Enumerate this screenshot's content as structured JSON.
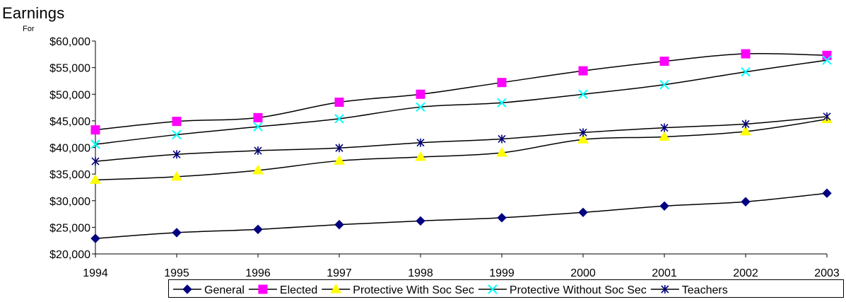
{
  "chart_data": {
    "type": "line",
    "title": "Earnings",
    "subtitle": "For",
    "categories": [
      "1994",
      "1995",
      "1996",
      "1997",
      "1998",
      "1999",
      "2000",
      "2001",
      "2002",
      "2003"
    ],
    "ylim": [
      20000,
      60000
    ],
    "yticks": [
      "$20,000",
      "$25,000",
      "$30,000",
      "$35,000",
      "$40,000",
      "$45,000",
      "$50,000",
      "$55,000",
      "$60,000"
    ],
    "ytick_values": [
      20000,
      25000,
      30000,
      35000,
      40000,
      45000,
      50000,
      55000,
      60000
    ],
    "grid": false,
    "legend_position": "bottom",
    "series": [
      {
        "name": "General",
        "color": "#000080",
        "marker": "diamond",
        "values": [
          22900,
          24000,
          24600,
          25500,
          26200,
          26800,
          27800,
          29000,
          29800,
          31400
        ]
      },
      {
        "name": "Elected",
        "color": "#FF00FF",
        "marker": "square",
        "values": [
          43300,
          44900,
          45600,
          48500,
          50000,
          52200,
          54400,
          56200,
          57600,
          57300
        ]
      },
      {
        "name": "Protective With Soc Sec",
        "color": "#FFFF00",
        "marker": "triangle",
        "values": [
          33900,
          34500,
          35700,
          37500,
          38200,
          39000,
          41500,
          42000,
          43000,
          45300
        ]
      },
      {
        "name": "Protective Without Soc Sec",
        "color": "#00FFFF",
        "marker": "x",
        "values": [
          40600,
          42400,
          43900,
          45400,
          47600,
          48400,
          50000,
          51800,
          54200,
          56400
        ]
      },
      {
        "name": "Teachers",
        "color": "#000080",
        "marker": "star",
        "values": [
          37400,
          38700,
          39400,
          39900,
          40900,
          41600,
          42800,
          43700,
          44400,
          45800
        ]
      }
    ]
  }
}
